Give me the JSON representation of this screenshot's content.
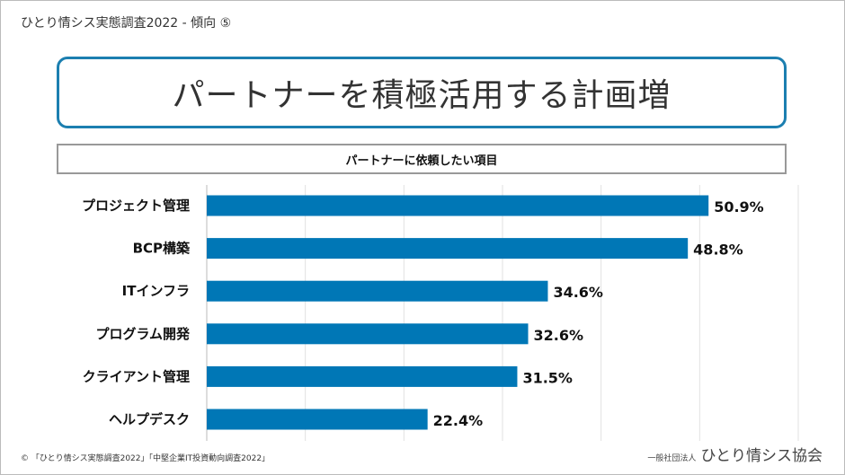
{
  "header": {
    "title": "ひとり情シス実態調査2022  - 傾向 ⑤"
  },
  "slide": {
    "title": "パートナーを積極活用する計画増",
    "subtitle": "パートナーに依頼したい項目"
  },
  "chart_data": {
    "type": "bar",
    "orientation": "horizontal",
    "title": "パートナーに依頼したい項目",
    "categories": [
      "プロジェクト管理",
      "BCP構築",
      "ITインフラ",
      "プログラム開発",
      "クライアント管理",
      "ヘルプデスク"
    ],
    "values": [
      50.9,
      48.8,
      34.6,
      32.6,
      31.5,
      22.4
    ],
    "data_labels": [
      "50.9%",
      "48.8%",
      "34.6%",
      "32.6%",
      "31.5%",
      "22.4%"
    ],
    "xlim": [
      0,
      60
    ],
    "grid": true,
    "bar_color": "#0077b6"
  },
  "footer": {
    "source": "© 「ひとり情シス実態調査2022」「中堅企業IT投資動向調査2022」",
    "org_prefix": "一般社団法人",
    "org_name": "ひとり情シス協会"
  }
}
